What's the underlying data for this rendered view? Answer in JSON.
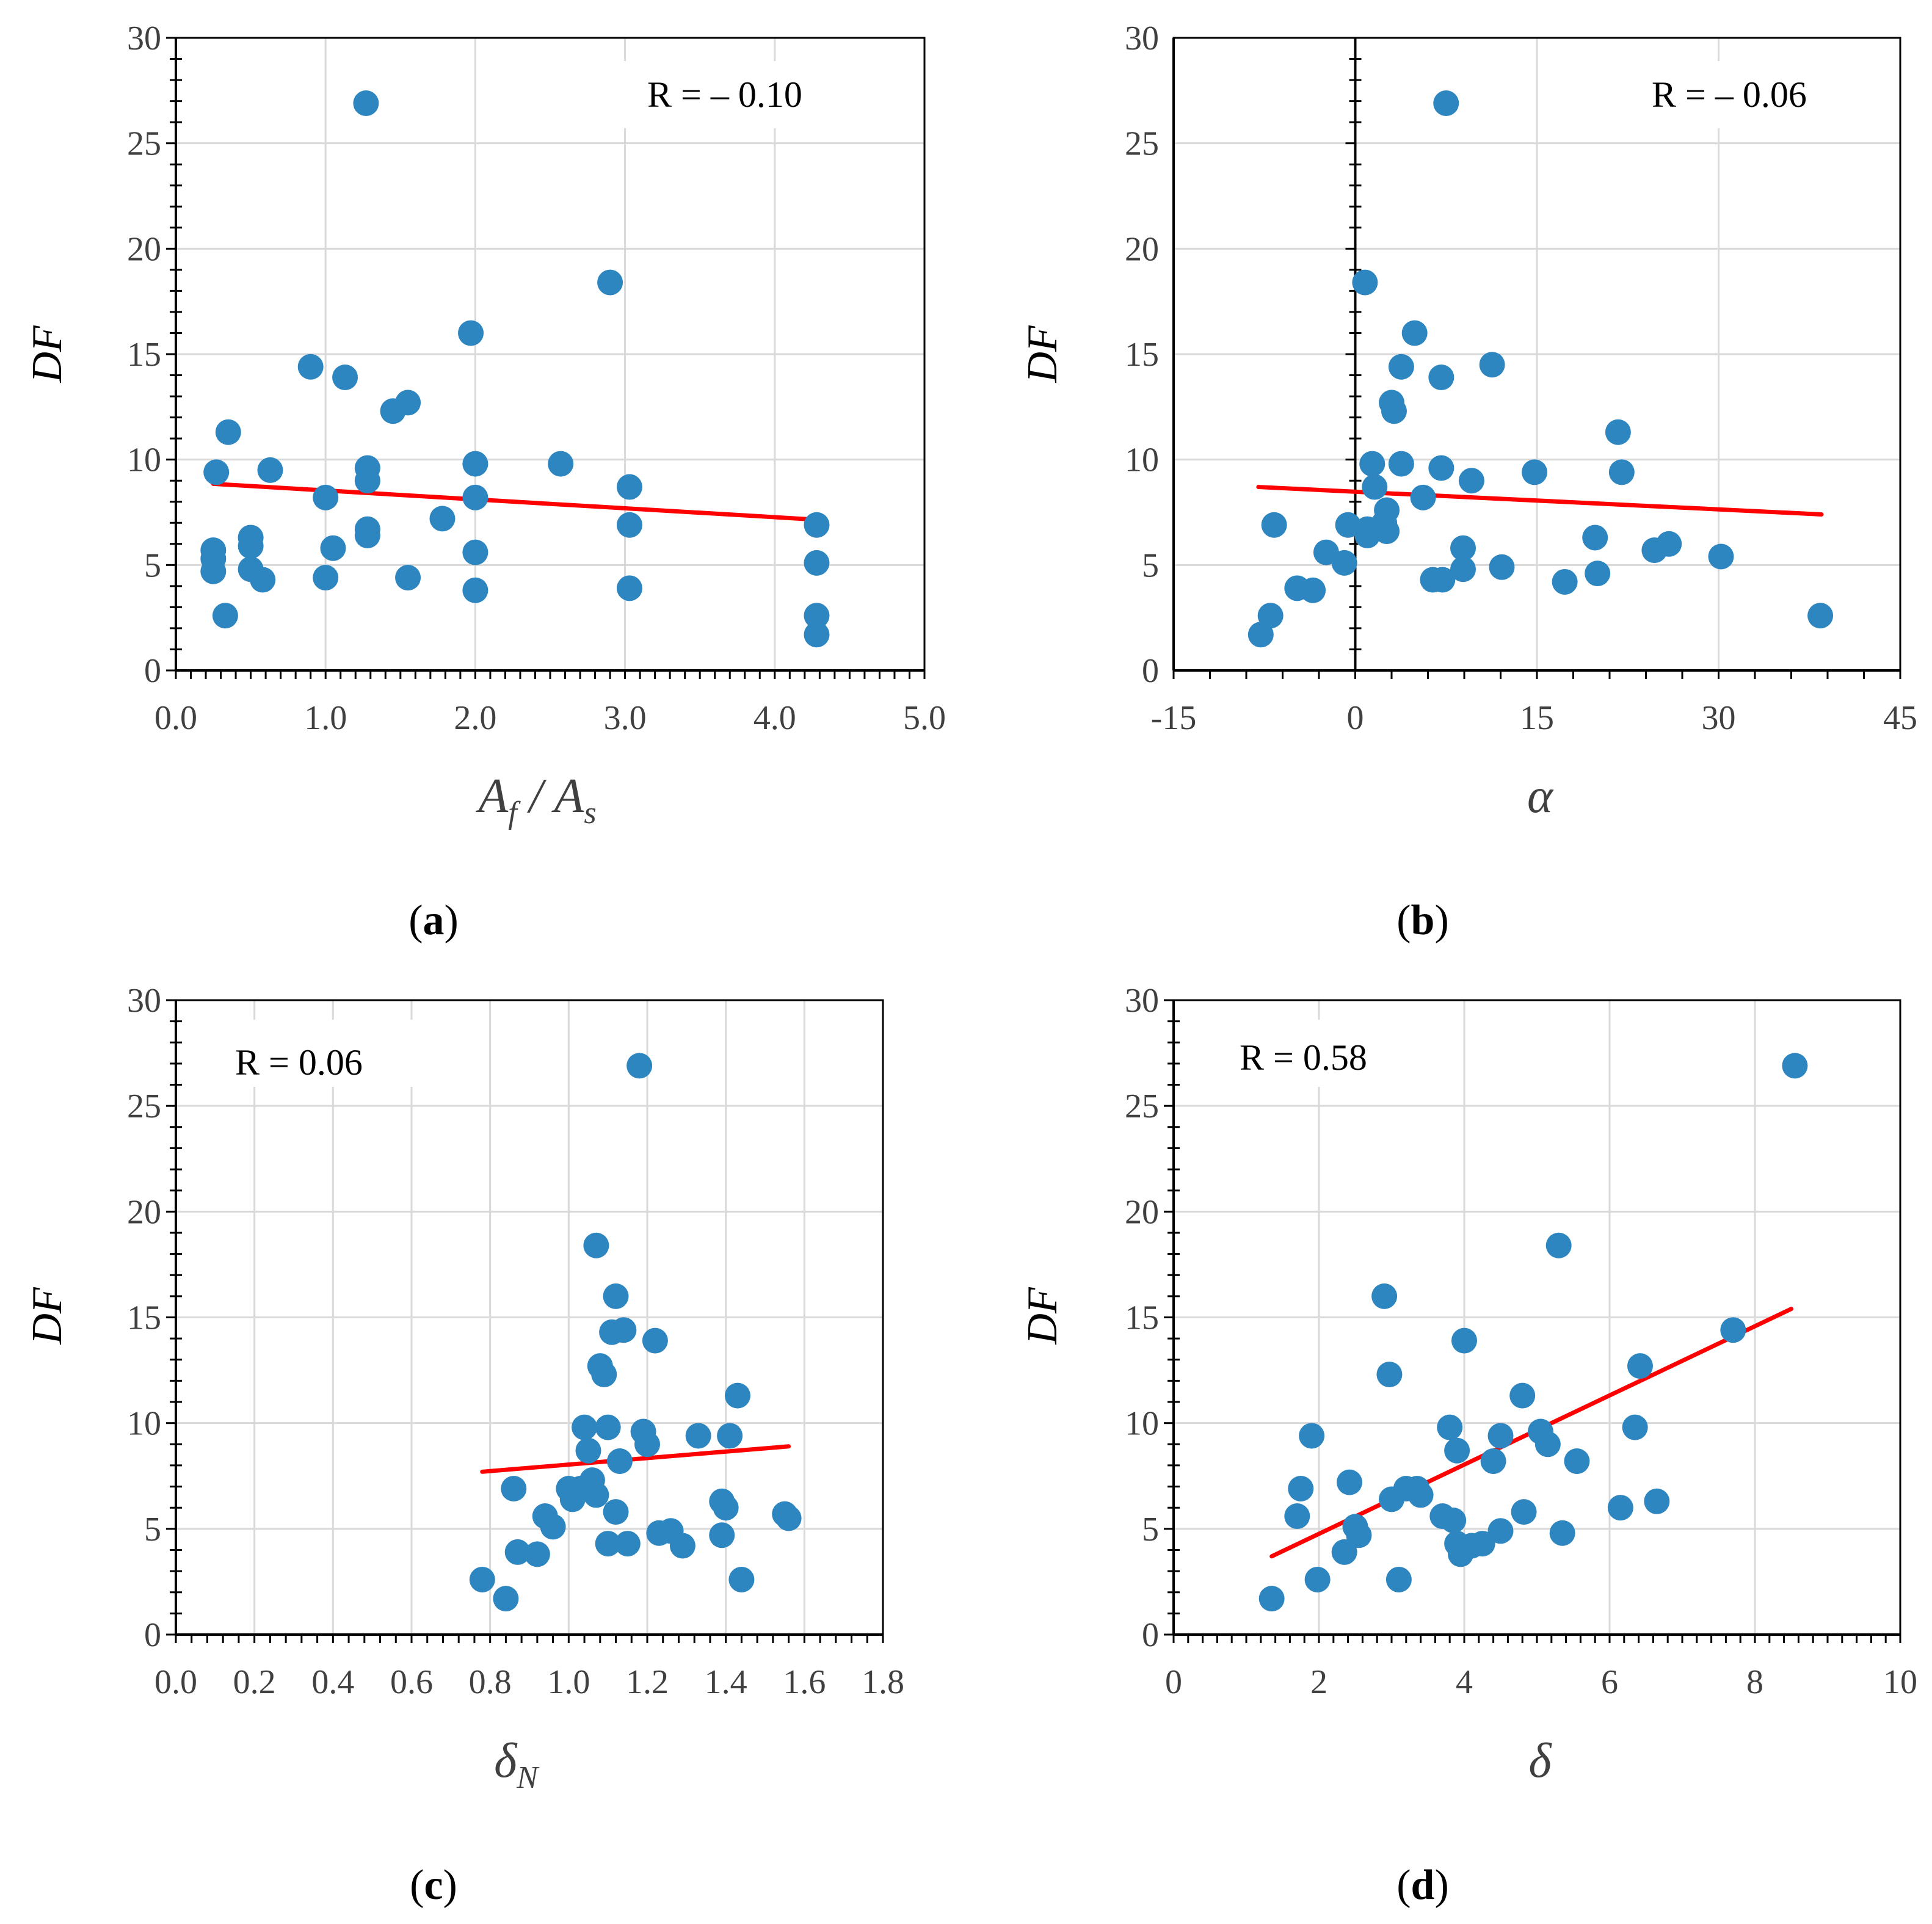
{
  "colors": {
    "point": "#2e86c1",
    "trend": "#ff0000",
    "grid": "#d9d9d9",
    "axis": "#000000",
    "tick_text": "#404040"
  },
  "chart_data": [
    {
      "id": "a",
      "type": "scatter",
      "caption": "a",
      "ylabel": "DF",
      "xlabel_main": "A",
      "xlabel_sub": "f",
      "xlabel_sep": " / ",
      "xlabel_main2": "A",
      "xlabel_sub2": "s",
      "r_text": "R = – 0.10",
      "r_position": "top-right",
      "xlim": [
        0,
        5
      ],
      "ylim": [
        0,
        30
      ],
      "xticks": [
        0,
        1,
        2,
        3,
        4,
        5
      ],
      "xtick_labels": [
        "0.0",
        "1.0",
        "2.0",
        "3.0",
        "4.0",
        "5.0"
      ],
      "yticks": [
        0,
        5,
        10,
        15,
        20,
        25,
        30
      ],
      "ytick_labels": [
        "0",
        "5",
        "10",
        "15",
        "20",
        "25",
        "30"
      ],
      "minor_x": 0.1,
      "minor_y": 1,
      "grid": true,
      "trendline": {
        "x": [
          0.25,
          4.28
        ],
        "y": [
          8.85,
          7.15
        ]
      },
      "points": [
        [
          0.25,
          5.7
        ],
        [
          0.25,
          5.3
        ],
        [
          0.25,
          4.7
        ],
        [
          0.27,
          9.4
        ],
        [
          0.33,
          2.6
        ],
        [
          0.35,
          11.3
        ],
        [
          0.5,
          6.3
        ],
        [
          0.5,
          5.9
        ],
        [
          0.5,
          4.8
        ],
        [
          0.58,
          4.3
        ],
        [
          0.63,
          9.5
        ],
        [
          0.9,
          14.4
        ],
        [
          1.0,
          8.2
        ],
        [
          1.0,
          4.4
        ],
        [
          1.05,
          5.8
        ],
        [
          1.13,
          13.9
        ],
        [
          1.27,
          26.9
        ],
        [
          1.28,
          9.6
        ],
        [
          1.28,
          9.0
        ],
        [
          1.28,
          6.7
        ],
        [
          1.28,
          6.4
        ],
        [
          1.45,
          12.3
        ],
        [
          1.55,
          12.7
        ],
        [
          1.55,
          4.4
        ],
        [
          1.78,
          7.2
        ],
        [
          1.97,
          16.0
        ],
        [
          2.0,
          9.8
        ],
        [
          2.0,
          8.2
        ],
        [
          2.0,
          5.6
        ],
        [
          2.0,
          3.8
        ],
        [
          2.57,
          9.8
        ],
        [
          2.9,
          18.4
        ],
        [
          3.03,
          8.7
        ],
        [
          3.03,
          6.9
        ],
        [
          3.03,
          3.9
        ],
        [
          4.28,
          6.9
        ],
        [
          4.28,
          5.1
        ],
        [
          4.28,
          2.6
        ],
        [
          4.28,
          1.7
        ]
      ]
    },
    {
      "id": "b",
      "type": "scatter",
      "caption": "b",
      "ylabel": "DF",
      "xlabel_main": "α",
      "r_text": "R = – 0.06",
      "r_position": "top-right",
      "xlim": [
        -15,
        45
      ],
      "ylim": [
        0,
        30
      ],
      "xticks": [
        -15,
        0,
        15,
        30,
        45
      ],
      "xtick_labels": [
        "-15",
        "0",
        "15",
        "30",
        "45"
      ],
      "yticks": [
        0,
        5,
        10,
        15,
        20,
        25,
        30
      ],
      "ytick_labels": [
        "0",
        "5",
        "10",
        "15",
        "20",
        "25",
        "30"
      ],
      "minor_x": 3,
      "minor_y": 1,
      "grid": true,
      "zero_line_x": 0,
      "trendline": {
        "x": [
          -8,
          38.5
        ],
        "y": [
          8.7,
          7.4
        ]
      },
      "points": [
        [
          -7.8,
          1.7
        ],
        [
          -7.0,
          2.6
        ],
        [
          -6.7,
          6.9
        ],
        [
          -4.8,
          3.9
        ],
        [
          -3.5,
          3.8
        ],
        [
          -2.4,
          5.6
        ],
        [
          -0.9,
          5.1
        ],
        [
          -0.6,
          6.9
        ],
        [
          0.8,
          18.4
        ],
        [
          1.0,
          6.4
        ],
        [
          1.0,
          6.7
        ],
        [
          1.4,
          9.8
        ],
        [
          1.6,
          8.7
        ],
        [
          2.4,
          7.0
        ],
        [
          2.6,
          6.6
        ],
        [
          2.6,
          7.6
        ],
        [
          3.0,
          12.7
        ],
        [
          3.2,
          12.3
        ],
        [
          3.8,
          14.4
        ],
        [
          3.8,
          9.8
        ],
        [
          4.9,
          16.0
        ],
        [
          5.6,
          8.2
        ],
        [
          6.4,
          4.3
        ],
        [
          7.1,
          13.9
        ],
        [
          7.1,
          9.6
        ],
        [
          7.2,
          4.3
        ],
        [
          7.5,
          26.9
        ],
        [
          8.9,
          5.8
        ],
        [
          8.9,
          4.8
        ],
        [
          9.6,
          9.0
        ],
        [
          11.3,
          14.5
        ],
        [
          12.1,
          4.9
        ],
        [
          14.8,
          9.4
        ],
        [
          17.3,
          4.2
        ],
        [
          19.8,
          6.3
        ],
        [
          20.0,
          4.6
        ],
        [
          21.7,
          11.3
        ],
        [
          22.0,
          9.4
        ],
        [
          24.7,
          5.7
        ],
        [
          25.9,
          6.0
        ],
        [
          30.2,
          5.4
        ],
        [
          38.4,
          2.6
        ]
      ]
    },
    {
      "id": "c",
      "type": "scatter",
      "caption": "c",
      "ylabel": "DF",
      "xlabel_main": "δ",
      "xlabel_sub": "N",
      "r_text": "R = 0.06",
      "r_position": "top-left",
      "xlim": [
        0,
        1.8
      ],
      "ylim": [
        0,
        30
      ],
      "xticks": [
        0,
        0.2,
        0.4,
        0.6,
        0.8,
        1.0,
        1.2,
        1.4,
        1.6,
        1.8
      ],
      "xtick_labels": [
        "0.0",
        "0.2",
        "0.4",
        "0.6",
        "0.8",
        "1.0",
        "1.2",
        "1.4",
        "1.6",
        "1.8"
      ],
      "yticks": [
        0,
        5,
        10,
        15,
        20,
        25,
        30
      ],
      "ytick_labels": [
        "0",
        "5",
        "10",
        "15",
        "20",
        "25",
        "30"
      ],
      "minor_x": 0.04,
      "minor_y": 1,
      "grid": true,
      "trendline": {
        "x": [
          0.78,
          1.56
        ],
        "y": [
          7.7,
          8.9
        ]
      },
      "points": [
        [
          0.78,
          2.6
        ],
        [
          0.84,
          1.7
        ],
        [
          0.86,
          6.9
        ],
        [
          0.87,
          3.9
        ],
        [
          0.92,
          3.8
        ],
        [
          0.94,
          5.6
        ],
        [
          0.96,
          5.1
        ],
        [
          1.0,
          6.9
        ],
        [
          1.01,
          6.4
        ],
        [
          1.03,
          6.9
        ],
        [
          1.04,
          9.8
        ],
        [
          1.05,
          8.7
        ],
        [
          1.06,
          7.3
        ],
        [
          1.07,
          6.6
        ],
        [
          1.07,
          18.4
        ],
        [
          1.08,
          12.7
        ],
        [
          1.09,
          12.3
        ],
        [
          1.1,
          9.8
        ],
        [
          1.1,
          4.3
        ],
        [
          1.11,
          14.3
        ],
        [
          1.12,
          16.0
        ],
        [
          1.12,
          5.8
        ],
        [
          1.13,
          8.2
        ],
        [
          1.14,
          14.4
        ],
        [
          1.15,
          4.3
        ],
        [
          1.18,
          26.9
        ],
        [
          1.19,
          9.6
        ],
        [
          1.2,
          9.0
        ],
        [
          1.22,
          13.9
        ],
        [
          1.23,
          4.8
        ],
        [
          1.26,
          4.9
        ],
        [
          1.29,
          4.2
        ],
        [
          1.33,
          9.4
        ],
        [
          1.39,
          6.3
        ],
        [
          1.39,
          4.7
        ],
        [
          1.4,
          6.0
        ],
        [
          1.41,
          9.4
        ],
        [
          1.43,
          11.3
        ],
        [
          1.44,
          2.6
        ],
        [
          1.55,
          5.7
        ],
        [
          1.56,
          5.5
        ]
      ]
    },
    {
      "id": "d",
      "type": "scatter",
      "caption": "d",
      "ylabel": "DF",
      "xlabel_main": "δ",
      "r_text": "R = 0.58",
      "r_position": "top-left",
      "xlim": [
        0,
        10
      ],
      "ylim": [
        0,
        30
      ],
      "xticks": [
        0,
        2,
        4,
        6,
        8,
        10
      ],
      "xtick_labels": [
        "0",
        "2",
        "4",
        "6",
        "8",
        "10"
      ],
      "yticks": [
        0,
        5,
        10,
        15,
        20,
        25,
        30
      ],
      "ytick_labels": [
        "0",
        "5",
        "10",
        "15",
        "20",
        "25",
        "30"
      ],
      "minor_x": 0.2,
      "minor_y": 1,
      "grid": true,
      "trendline": {
        "x": [
          1.35,
          8.5
        ],
        "y": [
          3.7,
          15.4
        ]
      },
      "points": [
        [
          1.35,
          1.7
        ],
        [
          1.7,
          5.6
        ],
        [
          1.75,
          6.9
        ],
        [
          1.9,
          9.4
        ],
        [
          1.98,
          2.6
        ],
        [
          2.35,
          3.9
        ],
        [
          2.42,
          7.2
        ],
        [
          2.5,
          5.1
        ],
        [
          2.55,
          4.7
        ],
        [
          2.9,
          16.0
        ],
        [
          2.97,
          12.3
        ],
        [
          3.0,
          6.4
        ],
        [
          3.1,
          2.6
        ],
        [
          3.2,
          6.9
        ],
        [
          3.35,
          6.9
        ],
        [
          3.4,
          6.6
        ],
        [
          3.7,
          5.6
        ],
        [
          3.8,
          9.8
        ],
        [
          3.85,
          5.4
        ],
        [
          3.9,
          4.3
        ],
        [
          3.9,
          8.7
        ],
        [
          3.95,
          3.8
        ],
        [
          4.0,
          13.9
        ],
        [
          4.1,
          4.2
        ],
        [
          4.25,
          4.3
        ],
        [
          4.4,
          8.2
        ],
        [
          4.5,
          4.9
        ],
        [
          4.5,
          9.4
        ],
        [
          4.8,
          11.3
        ],
        [
          4.82,
          5.8
        ],
        [
          5.05,
          9.6
        ],
        [
          5.15,
          9.0
        ],
        [
          5.3,
          18.4
        ],
        [
          5.35,
          4.8
        ],
        [
          5.55,
          8.2
        ],
        [
          6.15,
          6.0
        ],
        [
          6.35,
          9.8
        ],
        [
          6.42,
          12.7
        ],
        [
          6.65,
          6.3
        ],
        [
          7.7,
          14.4
        ],
        [
          8.55,
          26.9
        ]
      ]
    }
  ]
}
